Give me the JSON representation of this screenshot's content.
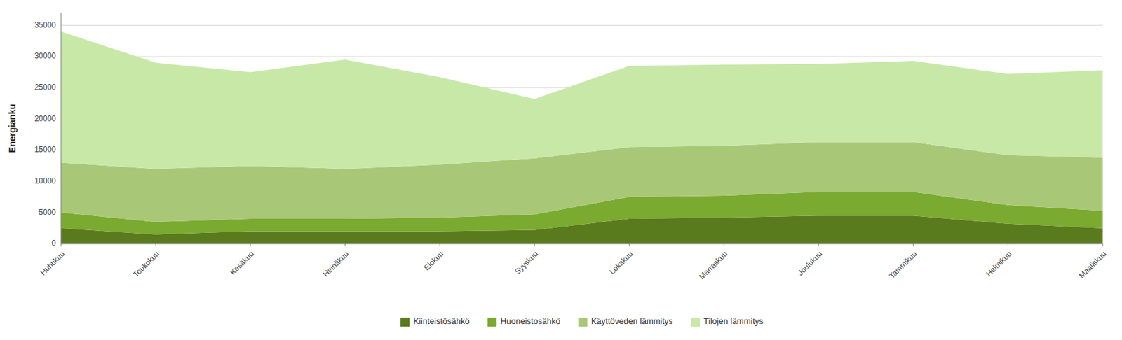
{
  "chart_data": {
    "type": "area",
    "stacked": true,
    "categories": [
      "Huhtikuu",
      "Toukokuu",
      "Kesäkuu",
      "Heinäkuu",
      "Elokuu",
      "Syyskuu",
      "Lokakuu",
      "Marraskuu",
      "Joulukuu",
      "Tammikuu",
      "Helmikuu",
      "Maaliskuu"
    ],
    "series": [
      {
        "name": "Kiinteistösähkö",
        "color": "#5a7a1e",
        "values": [
          2500,
          1500,
          2000,
          2000,
          2000,
          2200,
          4000,
          4200,
          4500,
          4500,
          3200,
          2500
        ]
      },
      {
        "name": "Huoneistosähkö",
        "color": "#7aaa30",
        "values": [
          2500,
          2000,
          2000,
          2000,
          2200,
          2500,
          3500,
          3500,
          3800,
          3800,
          3000,
          2800
        ]
      },
      {
        "name": "Käyttöveden lämmitys",
        "color": "#a8c878",
        "values": [
          8000,
          8500,
          8500,
          8000,
          8500,
          9000,
          8000,
          8000,
          8000,
          8000,
          8000,
          8500
        ]
      },
      {
        "name": "Tilojen lämmitys",
        "color": "#c8e8a8",
        "values": [
          21000,
          17000,
          15000,
          17500,
          14000,
          9500,
          13000,
          13000,
          12500,
          13000,
          13000,
          14000
        ]
      }
    ],
    "y_label": "Energianku",
    "ylim": [
      0,
      37000
    ],
    "yticks": [
      0,
      5000,
      10000,
      15000,
      20000,
      25000,
      30000,
      35000
    ],
    "grid": true,
    "legend": "bottom"
  }
}
